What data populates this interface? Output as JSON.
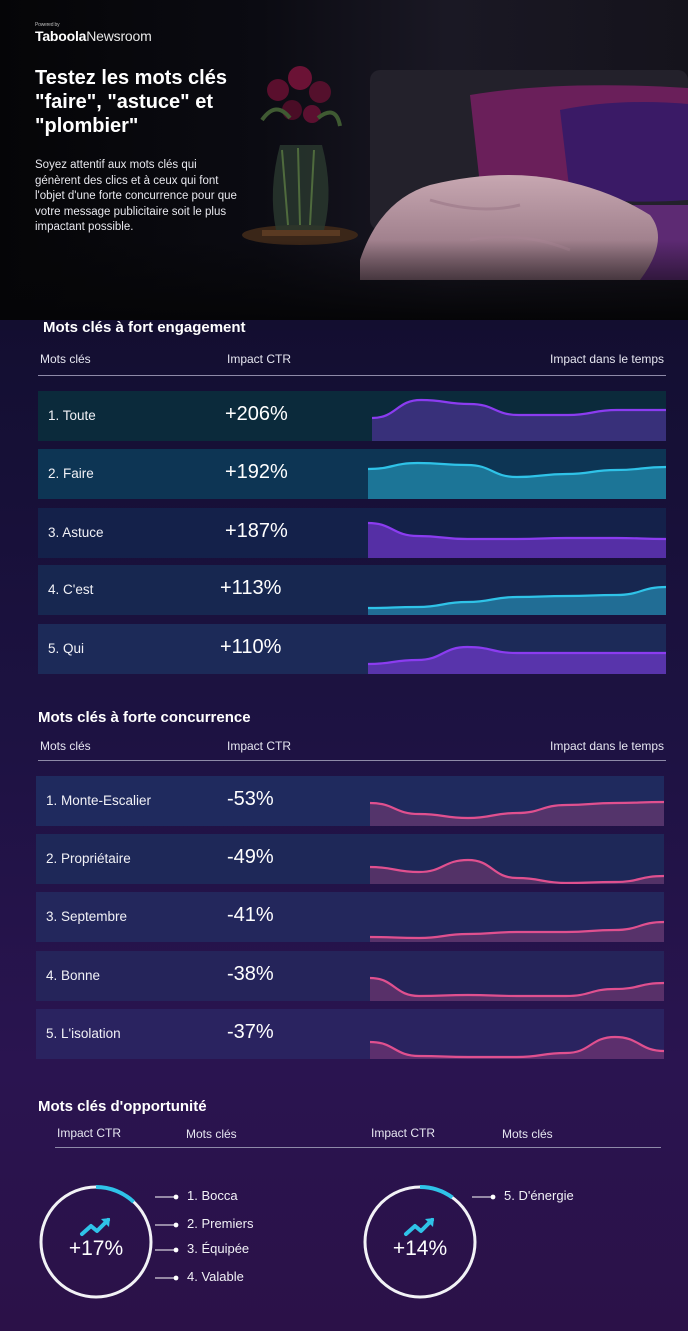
{
  "brand": {
    "pre": "Powered by",
    "name1": "Taboola",
    "name2": "Newsroom"
  },
  "hero": {
    "title": "Testez les mots clés \"faire\", \"astuce\" et \"plombier\"",
    "body": "Soyez attentif aux mots clés qui génèrent des clics et à ceux qui font l'objet d'une forte concurrence pour que votre message publicitaire soit le plus impactant possible."
  },
  "engagement": {
    "title": "Mots clés à fort engagement",
    "headers": {
      "keywords": "Mots clés",
      "ctr": "Impact CTR",
      "time": "Impact dans le temps"
    },
    "rows": [
      {
        "rank": "1. Toute",
        "ctr": "+206%",
        "color": "#8b3cf0"
      },
      {
        "rank": "2. Faire",
        "ctr": "+192%",
        "color": "#2fc3e8"
      },
      {
        "rank": "3. Astuce",
        "ctr": "+187%",
        "color": "#8b3cf0"
      },
      {
        "rank": "4. C'est",
        "ctr": "+113%",
        "color": "#2fc3e8"
      },
      {
        "rank": "5. Qui",
        "ctr": "+110%",
        "color": "#8b3cf0"
      }
    ]
  },
  "competition": {
    "title": "Mots clés à forte concurrence",
    "headers": {
      "keywords": "Mots clés",
      "ctr": "Impact CTR",
      "time": "Impact dans le temps"
    },
    "rows": [
      {
        "rank": "1. Monte-Escalier",
        "ctr": "-53%",
        "color": "#e0508f"
      },
      {
        "rank": "2. Propriétaire",
        "ctr": "-49%",
        "color": "#e0508f"
      },
      {
        "rank": "3. Septembre",
        "ctr": "-41%",
        "color": "#e0508f"
      },
      {
        "rank": "4. Bonne",
        "ctr": "-38%",
        "color": "#e0508f"
      },
      {
        "rank": "5. L'isolation",
        "ctr": "-37%",
        "color": "#e0508f"
      }
    ]
  },
  "opportunity": {
    "title": "Mots clés d'opportunité",
    "headers": {
      "ctr": "Impact CTR",
      "keywords": "Mots clés"
    },
    "groups": [
      {
        "pct": "+17%",
        "progress": 0.12,
        "keywords": [
          "1. Bocca",
          "2. Premiers",
          "3. Équipée",
          "4. Valable"
        ]
      },
      {
        "pct": "+14%",
        "progress": 0.1,
        "keywords": [
          "5. D'énergie"
        ]
      }
    ]
  },
  "colors": {
    "purple": "#8b3cf0",
    "cyan": "#2fc3e8",
    "pink": "#e0508f",
    "ring": "#f2f2f6",
    "ringAccent": "#2fc3e8"
  }
}
